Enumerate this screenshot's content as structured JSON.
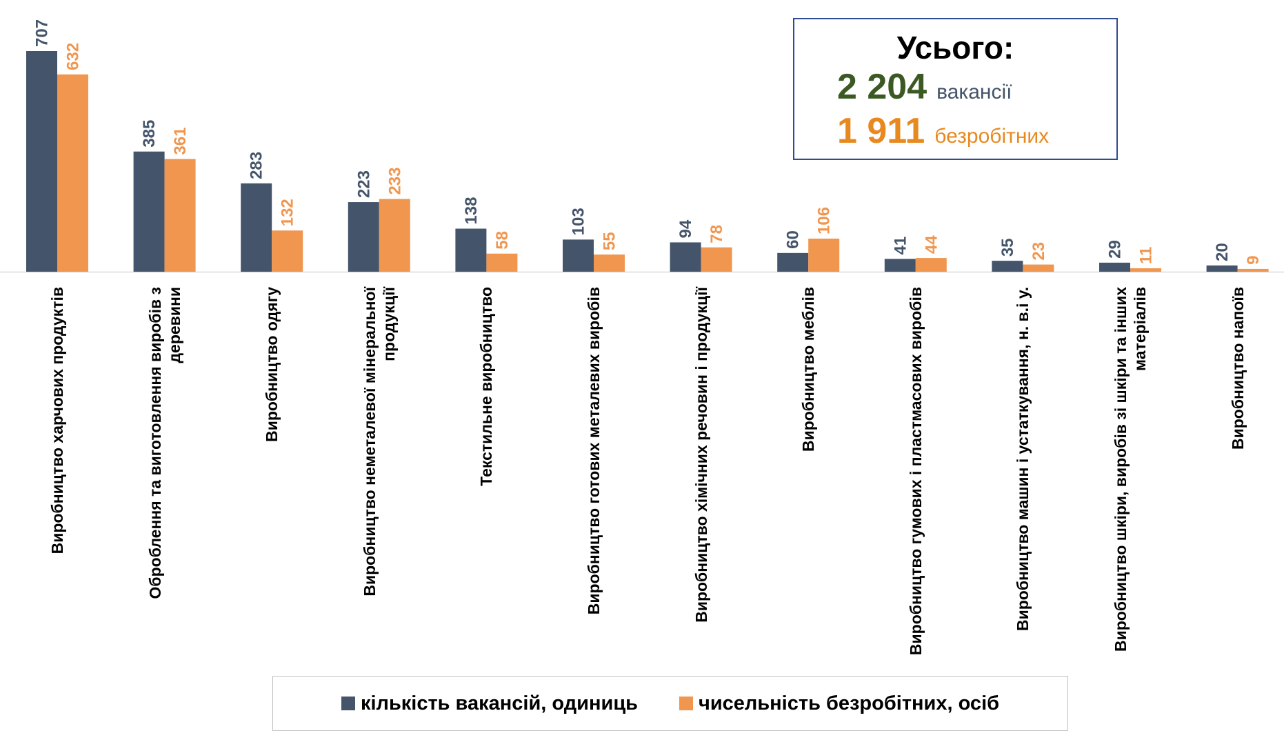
{
  "chart_data": {
    "type": "bar",
    "categories": [
      "Виробництво харчових продуктів",
      "Оброблення та виготовлення виробів з деревини",
      "Виробництво одягу",
      "Виробництво неметалевої мінеральної продукції",
      "Текстильне виробництво",
      "Виробництво готових металевих виробів",
      "Виробництво хімічних речовин і продукції",
      "Виробництво меблів",
      "Виробництво гумових і пластмасових виробів",
      "Виробництво машин і устаткування, н. в.і у.",
      "Виробництво шкіри, виробів зі шкіри та інших матеріалів",
      "Виробництво напоїв"
    ],
    "series": [
      {
        "name": "кількість вакансій, одиниць",
        "color": "#44546a",
        "values": [
          707,
          385,
          283,
          223,
          138,
          103,
          94,
          60,
          41,
          35,
          29,
          20
        ]
      },
      {
        "name": "чисельність безробітних, осіб",
        "color": "#f0964f",
        "values": [
          632,
          361,
          132,
          233,
          58,
          55,
          78,
          106,
          44,
          23,
          11,
          9
        ]
      }
    ],
    "legend": "bottom",
    "total": {
      "title": "Усього:",
      "vacancies": "2 204",
      "vacancies_label": "вакансії",
      "unemployed": "1 911",
      "unemployed_label": "безробітних"
    }
  }
}
